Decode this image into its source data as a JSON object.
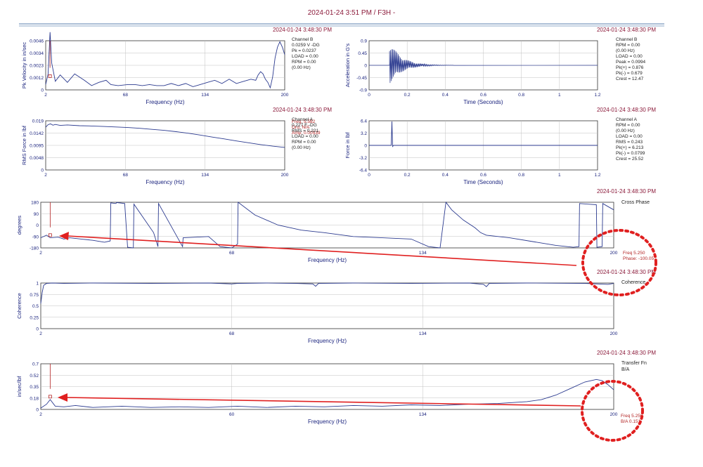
{
  "page_title": "2024-01-24 3:51 PM / F3H -",
  "colors": {
    "trace": "#2b3a8f",
    "text": "#1a237e",
    "accent": "#b22222",
    "annotation": "#e02020",
    "grid": "#c0c0c0"
  },
  "chart_data": [
    {
      "id": "p1",
      "type": "line",
      "timestamp": "2024-01-24 3:48:30 PM",
      "ylabel": "Pk Velocity in in/sec",
      "xlabel": "Frequency (Hz)",
      "yticks": [
        "0.0046",
        "0.0034",
        "0.0023",
        "0.0012",
        "0"
      ],
      "xticks": [
        "2",
        "68",
        "134",
        "200"
      ],
      "xlim": [
        2,
        200
      ],
      "ylim": [
        0,
        0.0046
      ],
      "info": [
        "Channel B",
        "0.0259 V -DG",
        "Pk = 0.0237",
        "LOAD = 0.00",
        "RPM = 0.00",
        "(0.00 Hz)"
      ],
      "cursor_info": [
        "Freq: 5.582",
        "Ord:  N/A",
        "Amp: 0.00539"
      ],
      "cursor_x": 5.582,
      "series": [
        {
          "x": [
            2,
            4,
            5.6,
            7,
            10,
            14,
            20,
            26,
            30,
            34,
            40,
            46,
            52,
            56,
            62,
            70,
            76,
            82,
            88,
            94,
            100,
            106,
            112,
            118,
            124,
            130,
            136,
            142,
            148,
            154,
            160,
            166,
            172,
            176,
            178,
            180,
            182,
            184,
            186,
            188,
            190,
            192,
            194,
            196,
            198,
            200
          ],
          "y": [
            0.0005,
            0.0015,
            0.0054,
            0.0025,
            0.0008,
            0.0014,
            0.0007,
            0.0015,
            0.0012,
            0.0009,
            0.0004,
            0.0007,
            0.0009,
            0.0005,
            0.0004,
            0.0005,
            0.0005,
            0.0004,
            0.0005,
            0.0004,
            0.0004,
            0.0006,
            0.0004,
            0.0006,
            0.0003,
            0.0005,
            0.0007,
            0.0009,
            0.0006,
            0.001,
            0.0006,
            0.0008,
            0.001,
            0.0009,
            0.0014,
            0.0017,
            0.0015,
            0.001,
            0.0007,
            0.0002,
            0.0012,
            0.003,
            0.004,
            0.0045,
            0.004,
            0.0033
          ]
        }
      ]
    },
    {
      "id": "p2",
      "type": "line",
      "timestamp": "2024-01-24 3:48:30 PM",
      "ylabel": "Acceleration in G's",
      "xlabel": "Time (Seconds)",
      "yticks": [
        "0.9",
        "0.45",
        "0",
        "-0.45",
        "-0.9"
      ],
      "xticks": [
        "0",
        "0.2",
        "0.4",
        "0.6",
        "0.8",
        "1",
        "1.2"
      ],
      "xlim": [
        0,
        1.34
      ],
      "ylim": [
        -0.9,
        0.9
      ],
      "info": [
        "Channel B",
        "RPM = 0.00",
        "(0.00 Hz)",
        "LOAD = 0.00",
        "Peak = 0.0994",
        "Pk(+) = 0.876",
        "Pk(-) = 0.679",
        "Crest = 12.47"
      ],
      "burst": {
        "start": 0.12,
        "end": 0.5,
        "amp_plus": 0.876,
        "amp_minus": 0.679
      }
    },
    {
      "id": "p3",
      "type": "line",
      "timestamp": "2024-01-24 3:48:30 PM",
      "ylabel": "RMS Force in lbf",
      "xlabel": "Frequency (Hz)",
      "yticks": [
        "0.019",
        "0.0142",
        "0.0095",
        "0.0048",
        "0"
      ],
      "xticks": [
        "2",
        "68",
        "134",
        "200"
      ],
      "xlim": [
        2,
        200
      ],
      "ylim": [
        0,
        0.019
      ],
      "info": [
        "Channel A",
        "0.227 F -DG",
        "RMS = 0.221",
        "LOAD = 0.00",
        "RPM = 0.00",
        "(0.00 Hz)"
      ],
      "series": [
        {
          "x": [
            2,
            4,
            6,
            8,
            10,
            14,
            20,
            30,
            40,
            50,
            60,
            70,
            80,
            90,
            100,
            110,
            120,
            130,
            140,
            150,
            160,
            170,
            180,
            190,
            200
          ],
          "y": [
            0.0165,
            0.0175,
            0.0178,
            0.0173,
            0.0176,
            0.0172,
            0.0174,
            0.0171,
            0.017,
            0.0168,
            0.0166,
            0.0164,
            0.0161,
            0.0157,
            0.0153,
            0.0148,
            0.0142,
            0.0135,
            0.0127,
            0.012,
            0.0112,
            0.0105,
            0.0098,
            0.0092,
            0.0087
          ]
        }
      ]
    },
    {
      "id": "p4",
      "type": "line",
      "timestamp": "2024-01-24 3:48:30 PM",
      "ylabel": "Force in lbf",
      "xlabel": "Time (Seconds)",
      "yticks": [
        "6.4",
        "3.2",
        "0",
        "-3.2",
        "-6.4"
      ],
      "xticks": [
        "0",
        "0.2",
        "0.4",
        "0.6",
        "0.8",
        "1",
        "1.2"
      ],
      "xlim": [
        0,
        1.34
      ],
      "ylim": [
        -6.4,
        6.4
      ],
      "info": [
        "Channel A",
        "RPM = 0.00",
        "(0.00 Hz)",
        "LOAD = 0.00",
        "RMS = 0.243",
        "Pk(+) = 6.213",
        "Pk(-) = 0.0799",
        "Crest = 25.52"
      ],
      "spike": {
        "x": 0.134,
        "peak": 6.213
      }
    },
    {
      "id": "p5",
      "type": "line",
      "timestamp": "2024-01-24 3:48:30 PM",
      "legend": "Cross Phase",
      "ylabel": "degrees",
      "xlabel": "Frequency (Hz)",
      "yticks": [
        "180",
        "90",
        "0",
        "-90",
        "-180"
      ],
      "xticks": [
        "2",
        "68",
        "134",
        "200"
      ],
      "xlim": [
        2,
        200
      ],
      "ylim": [
        -180,
        180
      ],
      "cursor_info": [
        "Freq 5.250",
        "Phase: -100.05"
      ],
      "cursor_x": 5.25,
      "series": [
        {
          "x": [
            2,
            4,
            5.25,
            8,
            10,
            12,
            16,
            20,
            24,
            26,
            26.2,
            28,
            28.2,
            31,
            32,
            34,
            34.2,
            41,
            42.5,
            42.7,
            51,
            51.2,
            60,
            64,
            68,
            70,
            70.2,
            76,
            84,
            92,
            100,
            110,
            120,
            130,
            136,
            140,
            142,
            144,
            148,
            152,
            154,
            156,
            164,
            172,
            180,
            184,
            186,
            188,
            188.2,
            194,
            194.2,
            196,
            196.2,
            200
          ],
          "y": [
            -100,
            -80,
            -100,
            -95,
            -110,
            -100,
            -110,
            -120,
            -135,
            -125,
            175,
            170,
            178,
            170,
            -175,
            -180,
            165,
            -60,
            -170,
            170,
            -170,
            -100,
            -90,
            -170,
            -180,
            -150,
            180,
            80,
            0,
            -40,
            -60,
            -90,
            -100,
            -110,
            -170,
            -180,
            180,
            120,
            40,
            -20,
            -60,
            -80,
            -100,
            -130,
            -160,
            -170,
            -175,
            -170,
            170,
            160,
            -175,
            -170,
            170,
            120
          ]
        }
      ]
    },
    {
      "id": "p6",
      "type": "line",
      "timestamp": "2024-01-24 3:48:30 PM",
      "legend": "Coherence",
      "ylabel": "Coherence",
      "xlabel": "Frequency (Hz)",
      "yticks": [
        "1",
        "0.75",
        "0.5",
        "0.25",
        "0"
      ],
      "xticks": [
        "2",
        "68",
        "134",
        "200"
      ],
      "xlim": [
        2,
        200
      ],
      "ylim": [
        0,
        1
      ],
      "series": [
        {
          "x": [
            2,
            2.5,
            3,
            4,
            6,
            10,
            20,
            40,
            60,
            68,
            70,
            80,
            90,
            96,
            97,
            98,
            110,
            130,
            150,
            155,
            156,
            157,
            170,
            190,
            198,
            200
          ],
          "y": [
            0.55,
            0.8,
            0.95,
            0.99,
            1.0,
            0.99,
            1.0,
            0.99,
            1.0,
            0.98,
            0.99,
            1.0,
            0.99,
            0.98,
            0.93,
            0.99,
            1.0,
            0.99,
            1.0,
            0.97,
            0.92,
            0.99,
            1.0,
            0.99,
            0.97,
            0.99
          ]
        }
      ]
    },
    {
      "id": "p7",
      "type": "line",
      "timestamp": "2024-01-24 3:48:30 PM",
      "legend": "Transfer Fn",
      "legend2": "B/A",
      "ylabel": "in/sec/lbf",
      "xlabel": "Frequency (Hz)",
      "yticks": [
        "0.7",
        "0.52",
        "0.35",
        "0.18",
        "0"
      ],
      "xticks": [
        "2",
        "60",
        "134",
        "200"
      ],
      "xlim": [
        2,
        200
      ],
      "ylim": [
        0,
        0.7
      ],
      "cursor_info": [
        "Freq 5.250",
        "B/A 0.151"
      ],
      "cursor_x": 5.25,
      "series": [
        {
          "x": [
            2,
            4,
            5.25,
            7,
            10,
            14,
            20,
            30,
            40,
            50,
            60,
            70,
            80,
            90,
            100,
            110,
            120,
            130,
            140,
            150,
            160,
            170,
            175,
            180,
            185,
            190,
            194,
            196,
            198,
            200
          ],
          "y": [
            0.02,
            0.08,
            0.151,
            0.05,
            0.04,
            0.06,
            0.03,
            0.05,
            0.03,
            0.04,
            0.03,
            0.05,
            0.03,
            0.05,
            0.04,
            0.06,
            0.05,
            0.07,
            0.06,
            0.08,
            0.09,
            0.12,
            0.15,
            0.22,
            0.32,
            0.42,
            0.46,
            0.44,
            0.38,
            0.3
          ]
        }
      ]
    }
  ]
}
